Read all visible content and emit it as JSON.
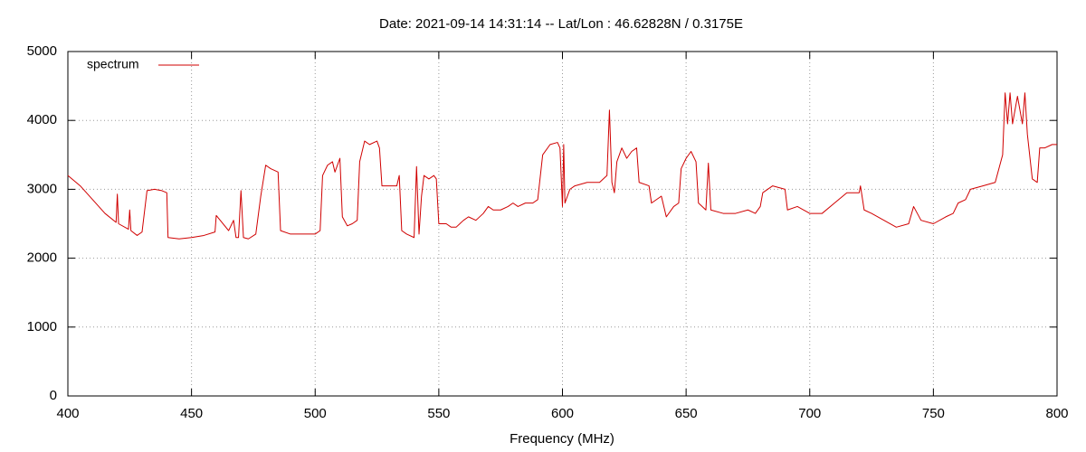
{
  "chart_data": {
    "type": "line",
    "title": "Date: 2021-09-14 14:31:14  --  Lat/Lon : 46.62828N / 0.3175E",
    "x_label": "Frequency (MHz)",
    "xlim": [
      400,
      800
    ],
    "xticks": [
      400,
      450,
      500,
      550,
      600,
      650,
      700,
      750,
      800
    ],
    "ylim": [
      0,
      5000
    ],
    "yticks": [
      0,
      1000,
      2000,
      3000,
      4000,
      5000
    ],
    "grid": true,
    "legend": "top left",
    "x": [
      400,
      405,
      410,
      415,
      419.5,
      420,
      420.5,
      424.5,
      425,
      425.5,
      428,
      430,
      432,
      435,
      438,
      440,
      440.5,
      445,
      450,
      455,
      459.5,
      460,
      465,
      467,
      468,
      469,
      470,
      471,
      473,
      476,
      478,
      480,
      482,
      485,
      486,
      490,
      495,
      500,
      502,
      503,
      505,
      507,
      508,
      510,
      511,
      513,
      515,
      517,
      518,
      520,
      522,
      525,
      526,
      527,
      530,
      533,
      534,
      535,
      537,
      540,
      541,
      542,
      543,
      544,
      546,
      548,
      549,
      550,
      553,
      555,
      557,
      560,
      562,
      565,
      568,
      570,
      572,
      575,
      578,
      580,
      582,
      585,
      588,
      590,
      592,
      595,
      598,
      599,
      600,
      600.5,
      601,
      603,
      605,
      610,
      615,
      618,
      619,
      620,
      621,
      622,
      624,
      626,
      628,
      630,
      631,
      635,
      636,
      640,
      642,
      645,
      647,
      648,
      650,
      652,
      654,
      655,
      658,
      659,
      660,
      665,
      670,
      675,
      678,
      680,
      681,
      685,
      690,
      691,
      695,
      700,
      705,
      710,
      715,
      720,
      720.5,
      722,
      725,
      730,
      735,
      740,
      742,
      745,
      750,
      755,
      758,
      760,
      763,
      765,
      770,
      775,
      778,
      779,
      780,
      781,
      782,
      784,
      786,
      787,
      788,
      790,
      792,
      793,
      795,
      798,
      800
    ],
    "series": [
      {
        "name": "spectrum",
        "color": "#d00000",
        "values": [
          3200,
          3050,
          2850,
          2650,
          2520,
          2930,
          2500,
          2420,
          2700,
          2400,
          2330,
          2380,
          2980,
          3000,
          2980,
          2950,
          2300,
          2280,
          2300,
          2330,
          2380,
          2620,
          2400,
          2550,
          2300,
          2300,
          2980,
          2300,
          2280,
          2350,
          2900,
          3350,
          3300,
          3250,
          2400,
          2350,
          2350,
          2350,
          2400,
          3200,
          3350,
          3400,
          3250,
          3450,
          2600,
          2470,
          2500,
          2550,
          3400,
          3700,
          3650,
          3700,
          3600,
          3050,
          3050,
          3050,
          3200,
          2400,
          2350,
          2300,
          3330,
          2350,
          2900,
          3200,
          3150,
          3200,
          3150,
          2500,
          2500,
          2450,
          2450,
          2550,
          2600,
          2550,
          2650,
          2750,
          2700,
          2700,
          2750,
          2800,
          2750,
          2800,
          2800,
          2850,
          3500,
          3650,
          3680,
          3600,
          2750,
          3650,
          2800,
          3000,
          3050,
          3100,
          3100,
          3200,
          4150,
          3100,
          2950,
          3400,
          3600,
          3450,
          3550,
          3600,
          3100,
          3050,
          2800,
          2900,
          2600,
          2750,
          2800,
          3300,
          3450,
          3550,
          3400,
          2800,
          2700,
          3380,
          2700,
          2650,
          2650,
          2700,
          2650,
          2750,
          2950,
          3050,
          3000,
          2700,
          2750,
          2650,
          2650,
          2800,
          2950,
          2950,
          3050,
          2700,
          2650,
          2550,
          2450,
          2500,
          2750,
          2550,
          2500,
          2600,
          2650,
          2800,
          2850,
          3000,
          3050,
          3100,
          3500,
          4400,
          3950,
          4400,
          3950,
          4350,
          3950,
          4400,
          3800,
          3150,
          3100,
          3600,
          3600,
          3650,
          3650
        ]
      }
    ]
  }
}
